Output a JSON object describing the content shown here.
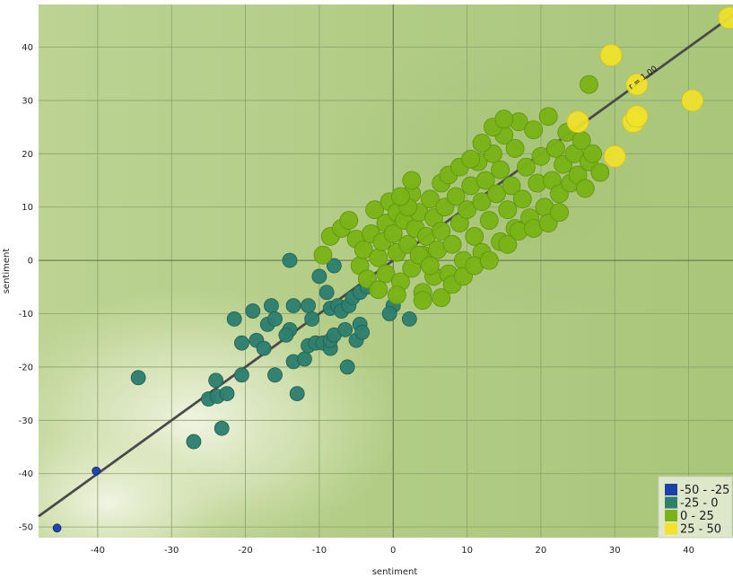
{
  "chart_data": {
    "type": "scatter",
    "title": "",
    "xlabel": "sentiment",
    "ylabel": "sentiment",
    "xlim": [
      -48,
      46
    ],
    "ylim": [
      -52,
      48
    ],
    "x_ticks": [
      "-40",
      "-30",
      "-20",
      "-10",
      "0",
      "10",
      "20",
      "30",
      "40"
    ],
    "y_ticks": [
      "-50",
      "-40",
      "-30",
      "-20",
      "-10",
      "0",
      "10",
      "20",
      "30",
      "40"
    ],
    "grid": true,
    "regression_line": {
      "label": "r = 1.00",
      "from": [
        -48,
        -48
      ],
      "to": [
        46,
        46
      ]
    },
    "legend": {
      "position": "bottom-right",
      "entries": [
        {
          "label": "-50 - -25",
          "color": "#1e3fa8"
        },
        {
          "label": "-25 - 0",
          "color": "#2e7f6e"
        },
        {
          "label": "0 - 25",
          "color": "#7ab317"
        },
        {
          "label": "25 - 50",
          "color": "#f1e22a"
        }
      ]
    },
    "series": [
      {
        "group": "-50 - -25",
        "color": "#1e3fa8",
        "points": [
          [
            -40.2,
            -39.5
          ],
          [
            -45.5,
            -50.2
          ]
        ]
      },
      {
        "group": "-25 - 0",
        "color": "#2e7f6e",
        "points": [
          [
            -34.5,
            -22.0
          ],
          [
            -27.0,
            -34.0
          ],
          [
            -25.0,
            -26.0
          ],
          [
            -24.0,
            -22.5
          ],
          [
            -23.8,
            -25.5
          ],
          [
            -23.2,
            -31.5
          ],
          [
            -22.5,
            -25.0
          ],
          [
            -20.5,
            -21.5
          ],
          [
            -21.5,
            -11.0
          ],
          [
            -20.5,
            -15.5
          ],
          [
            -19.0,
            -9.5
          ],
          [
            -18.5,
            -15.0
          ],
          [
            -17.5,
            -16.5
          ],
          [
            -17.0,
            -12.0
          ],
          [
            -16.5,
            -8.5
          ],
          [
            -16.0,
            -11.0
          ],
          [
            -16.0,
            -21.5
          ],
          [
            -14.0,
            -13.0
          ],
          [
            -14.5,
            -14.0
          ],
          [
            -13.5,
            -19.0
          ],
          [
            -13.0,
            -25.0
          ],
          [
            -13.5,
            -8.5
          ],
          [
            -12.0,
            -18.5
          ],
          [
            -11.5,
            -16.0
          ],
          [
            -11.0,
            -11.0
          ],
          [
            -11.5,
            -8.5
          ],
          [
            -10.5,
            -15.5
          ],
          [
            -10.0,
            -3.0
          ],
          [
            -9.5,
            -15.5
          ],
          [
            -9.0,
            -6.0
          ],
          [
            -8.5,
            -16.5
          ],
          [
            -8.5,
            -15.0
          ],
          [
            -8.5,
            -9.0
          ],
          [
            -8.0,
            -1.0
          ],
          [
            -8.0,
            -14.0
          ],
          [
            -7.5,
            -8.5
          ],
          [
            -7.0,
            -9.5
          ],
          [
            -6.5,
            -13.0
          ],
          [
            -6.2,
            -20.0
          ],
          [
            -6.0,
            -8.5
          ],
          [
            -5.5,
            -7.0
          ],
          [
            -5.0,
            -15.0
          ],
          [
            -4.5,
            -12.0
          ],
          [
            -4.2,
            -13.5
          ],
          [
            -14.0,
            0.0
          ],
          [
            0.0,
            -8.5
          ],
          [
            -0.5,
            -10.0
          ],
          [
            2.2,
            -11.0
          ],
          [
            -4.5,
            -6.0
          ],
          [
            -3.5,
            -5.0
          ]
        ]
      },
      {
        "group": "0 - 25",
        "color": "#7ab317",
        "points": [
          [
            -9.5,
            1.0
          ],
          [
            -8.5,
            4.5
          ],
          [
            -7.0,
            6.0
          ],
          [
            -6.0,
            7.5
          ],
          [
            -5.0,
            4.0
          ],
          [
            -4.5,
            -1.0
          ],
          [
            -4.0,
            2.0
          ],
          [
            -3.5,
            -3.5
          ],
          [
            -3.0,
            5.0
          ],
          [
            -2.5,
            9.5
          ],
          [
            -2.0,
            0.5
          ],
          [
            -1.5,
            3.5
          ],
          [
            -1.0,
            -2.5
          ],
          [
            -1.0,
            7.0
          ],
          [
            -0.5,
            11.0
          ],
          [
            0.0,
            5.0
          ],
          [
            0.5,
            1.5
          ],
          [
            0.5,
            9.0
          ],
          [
            1.0,
            -4.0
          ],
          [
            1.5,
            7.5
          ],
          [
            2.0,
            3.0
          ],
          [
            2.5,
            12.5
          ],
          [
            2.5,
            -1.5
          ],
          [
            3.0,
            6.0
          ],
          [
            3.5,
            9.0
          ],
          [
            4.0,
            1.0
          ],
          [
            4.0,
            -6.0
          ],
          [
            4.5,
            4.5
          ],
          [
            5.0,
            11.5
          ],
          [
            5.5,
            8.0
          ],
          [
            5.5,
            -3.0
          ],
          [
            6.0,
            2.0
          ],
          [
            6.5,
            14.5
          ],
          [
            6.5,
            5.5
          ],
          [
            7.0,
            10.0
          ],
          [
            7.5,
            -2.5
          ],
          [
            7.5,
            16.0
          ],
          [
            8.0,
            3.0
          ],
          [
            8.5,
            12.0
          ],
          [
            9.0,
            7.0
          ],
          [
            9.0,
            17.5
          ],
          [
            9.5,
            0.0
          ],
          [
            10.0,
            9.5
          ],
          [
            10.5,
            14.0
          ],
          [
            11.0,
            4.5
          ],
          [
            11.5,
            18.5
          ],
          [
            12.0,
            11.0
          ],
          [
            12.0,
            1.5
          ],
          [
            12.5,
            15.0
          ],
          [
            13.0,
            7.5
          ],
          [
            13.5,
            20.0
          ],
          [
            14.0,
            12.5
          ],
          [
            14.5,
            3.5
          ],
          [
            14.5,
            17.0
          ],
          [
            15.0,
            23.5
          ],
          [
            15.5,
            9.5
          ],
          [
            16.0,
            14.0
          ],
          [
            16.5,
            21.0
          ],
          [
            16.5,
            6.0
          ],
          [
            17.0,
            26.0
          ],
          [
            17.5,
            11.5
          ],
          [
            18.0,
            17.5
          ],
          [
            18.5,
            8.0
          ],
          [
            19.0,
            24.5
          ],
          [
            19.5,
            14.5
          ],
          [
            20.0,
            19.5
          ],
          [
            20.5,
            10.0
          ],
          [
            21.0,
            27.0
          ],
          [
            21.5,
            15.0
          ],
          [
            22.0,
            21.0
          ],
          [
            22.5,
            12.5
          ],
          [
            23.0,
            18.0
          ],
          [
            23.5,
            24.0
          ],
          [
            24.0,
            14.5
          ],
          [
            24.5,
            20.0
          ],
          [
            25.0,
            16.0
          ],
          [
            25.5,
            22.5
          ],
          [
            26.0,
            13.5
          ],
          [
            26.5,
            18.5
          ],
          [
            27.0,
            20.0
          ],
          [
            28.0,
            16.5
          ],
          [
            26.5,
            33.0
          ],
          [
            2.5,
            15.0
          ],
          [
            -2.0,
            -5.5
          ],
          [
            0.5,
            -6.5
          ],
          [
            4.0,
            -7.5
          ],
          [
            6.5,
            -7.0
          ],
          [
            8.0,
            -4.5
          ],
          [
            9.5,
            -3.0
          ],
          [
            11.0,
            -1.0
          ],
          [
            13.0,
            0.0
          ],
          [
            15.5,
            3.0
          ],
          [
            17.0,
            5.5
          ],
          [
            19.0,
            6.0
          ],
          [
            21.0,
            7.0
          ],
          [
            22.5,
            9.0
          ],
          [
            10.5,
            19.0
          ],
          [
            12.0,
            22.0
          ],
          [
            13.5,
            25.0
          ],
          [
            15.0,
            26.5
          ],
          [
            3.5,
            1.0
          ],
          [
            5.0,
            -1.0
          ],
          [
            2.0,
            10.0
          ],
          [
            1.0,
            12.0
          ]
        ]
      },
      {
        "group": "25 - 50",
        "color": "#f1e22a",
        "points": [
          [
            25.0,
            26.0
          ],
          [
            29.5,
            38.5
          ],
          [
            33.0,
            33.0
          ],
          [
            32.5,
            26.0
          ],
          [
            33.0,
            27.0
          ],
          [
            40.5,
            30.0
          ],
          [
            45.5,
            45.5
          ],
          [
            30.0,
            19.5
          ]
        ]
      }
    ]
  }
}
